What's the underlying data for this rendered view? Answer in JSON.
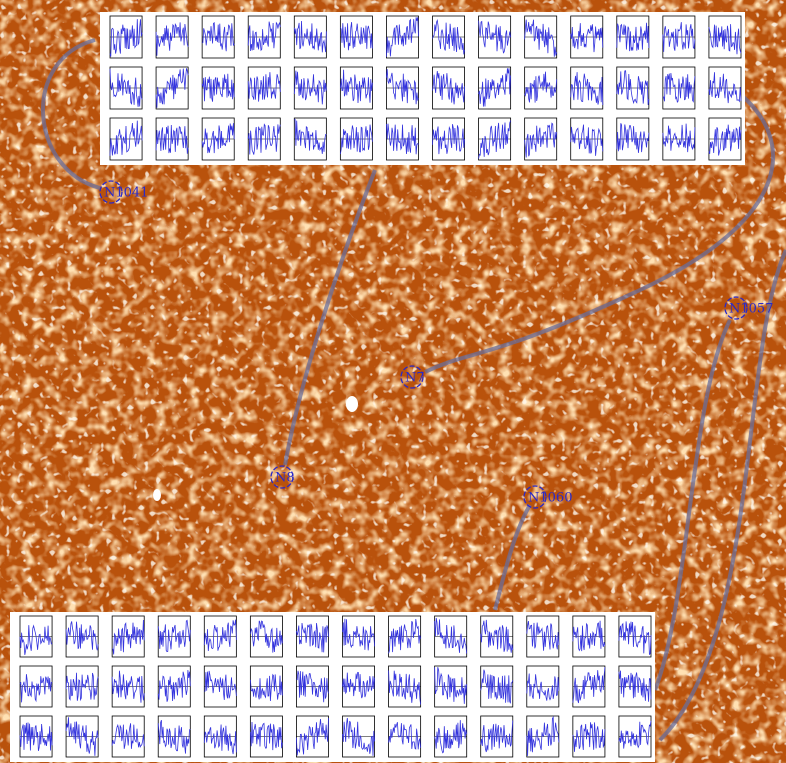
{
  "markers": [
    {
      "label": "N1041"
    },
    {
      "label": "N7"
    },
    {
      "label": "N8"
    },
    {
      "label": "N1060"
    },
    {
      "label": "N1057"
    }
  ]
}
